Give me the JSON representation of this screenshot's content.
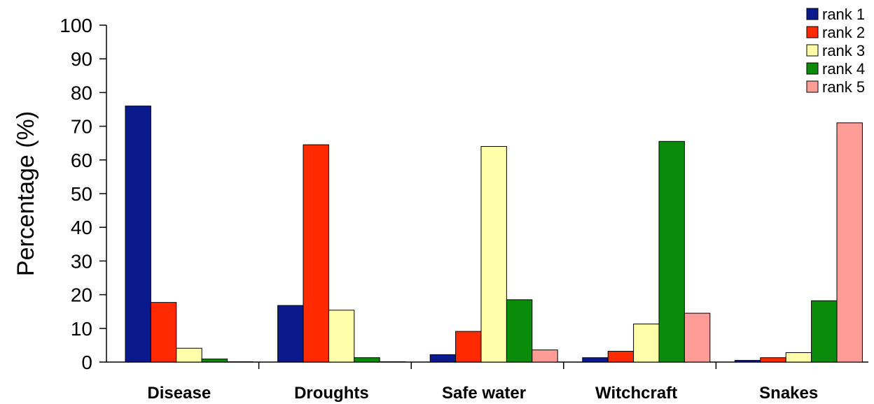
{
  "chart_data": {
    "type": "bar",
    "title": "",
    "xlabel": "",
    "ylabel": "Percentage (%)",
    "ylim": [
      0,
      100
    ],
    "yticks": [
      0,
      10,
      20,
      30,
      40,
      50,
      60,
      70,
      80,
      90,
      100
    ],
    "grid": false,
    "legend_position": "top-right",
    "categories": [
      "Disease",
      "Droughts",
      "Safe water",
      "Witchcraft",
      "Snakes"
    ],
    "series": [
      {
        "name": "rank 1",
        "color": "#0A1A8C",
        "values": [
          76,
          16.8,
          2.2,
          1.3,
          0.5
        ]
      },
      {
        "name": "rank 2",
        "color": "#FF2A00",
        "values": [
          17.7,
          64.5,
          9.1,
          3.2,
          1.3
        ]
      },
      {
        "name": "rank 3",
        "color": "#FFFFAA",
        "values": [
          4.1,
          15.4,
          64,
          11.3,
          2.8
        ]
      },
      {
        "name": "rank 4",
        "color": "#0A8C0A",
        "values": [
          0.9,
          1.3,
          18.5,
          65.5,
          18.2
        ]
      },
      {
        "name": "rank 5",
        "color": "#FF9C96",
        "values": [
          0.1,
          0.1,
          3.6,
          14.5,
          71
        ]
      }
    ]
  }
}
